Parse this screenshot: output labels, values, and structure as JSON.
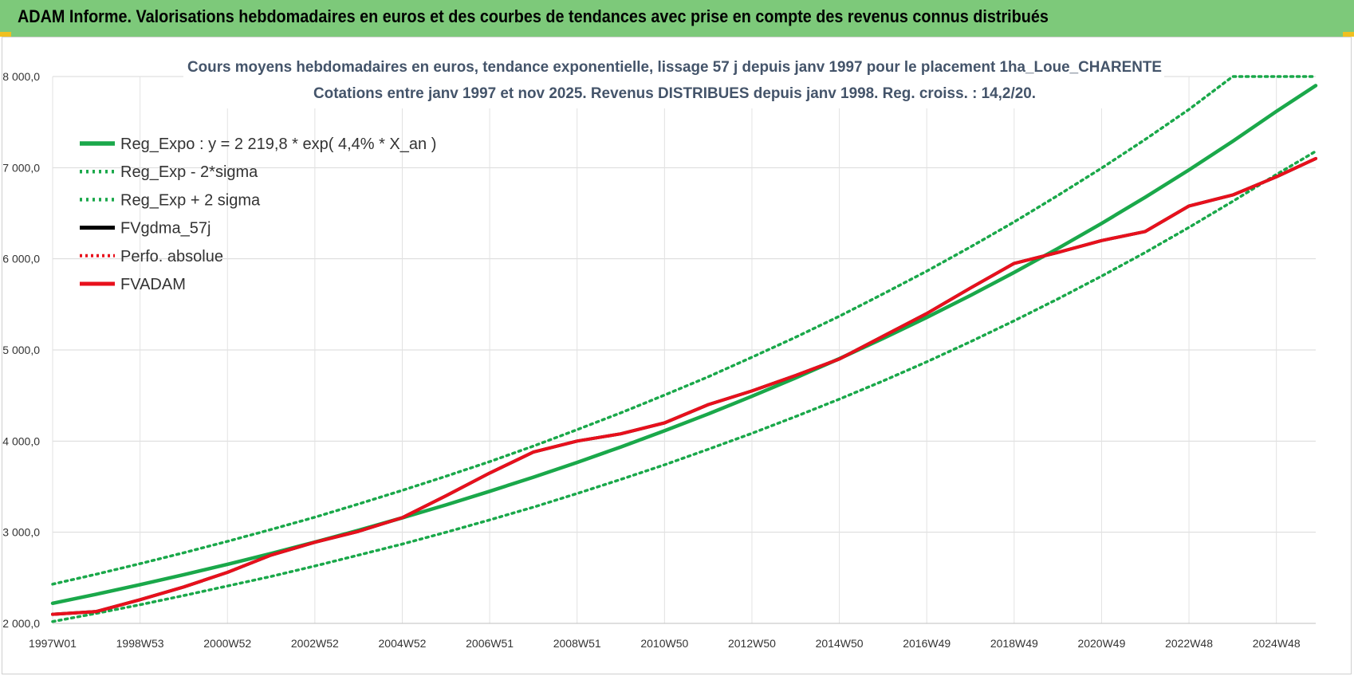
{
  "header": {
    "title": "ADAM Informe. Valorisations hebdomadaires en euros et des courbes de tendances avec prise en compte des revenus connus distribués"
  },
  "colors": {
    "banner": "#7dc97a",
    "trend": "#1aa84a",
    "fvgdma": "#000000",
    "fvadam": "#e8101c",
    "perfo": "#e8101c"
  },
  "chart_data": {
    "type": "line",
    "title": "Cours moyens hebdomadaires en euros, tendance exponentielle, lissage 57 j depuis janv 1997  pour le placement 1ha_Loue_CHARENTE",
    "subtitle": "Cotations entre janv 1997 et nov 2025. Revenus  DISTRIBUES depuis janv 1998.  Reg. croiss. : 14,2/20.",
    "xlabel": "",
    "ylabel": "",
    "x_range": [
      1997.0,
      2025.9
    ],
    "ylim": [
      2000,
      8000
    ],
    "grid": true,
    "legend_position": "top-left",
    "x_ticks": [
      {
        "label": "1997W01",
        "x": 1997.0
      },
      {
        "label": "1998W53",
        "x": 1999.0
      },
      {
        "label": "2000W52",
        "x": 2001.0
      },
      {
        "label": "2002W52",
        "x": 2003.0
      },
      {
        "label": "2004W52",
        "x": 2005.0
      },
      {
        "label": "2006W51",
        "x": 2007.0
      },
      {
        "label": "2008W51",
        "x": 2009.0
      },
      {
        "label": "2010W50",
        "x": 2011.0
      },
      {
        "label": "2012W50",
        "x": 2013.0
      },
      {
        "label": "2014W50",
        "x": 2015.0
      },
      {
        "label": "2016W49",
        "x": 2017.0
      },
      {
        "label": "2018W49",
        "x": 2019.0
      },
      {
        "label": "2020W49",
        "x": 2021.0
      },
      {
        "label": "2022W48",
        "x": 2023.0
      },
      {
        "label": "2024W48",
        "x": 2025.0
      }
    ],
    "y_ticks": [
      {
        "label": "2 000,0",
        "y": 2000
      },
      {
        "label": "3 000,0",
        "y": 3000
      },
      {
        "label": "4 000,0",
        "y": 4000
      },
      {
        "label": "5 000,0",
        "y": 5000
      },
      {
        "label": "6 000,0",
        "y": 6000
      },
      {
        "label": "7 000,0",
        "y": 7000
      },
      {
        "label": "8 000,0",
        "y": 8000
      }
    ],
    "x": [
      1997.0,
      1998.0,
      1999.0,
      2000.0,
      2001.0,
      2002.0,
      2003.0,
      2004.0,
      2005.0,
      2006.0,
      2007.0,
      2008.0,
      2009.0,
      2010.0,
      2011.0,
      2012.0,
      2013.0,
      2014.0,
      2015.0,
      2016.0,
      2017.0,
      2018.0,
      2019.0,
      2020.0,
      2021.0,
      2022.0,
      2023.0,
      2024.0,
      2025.0,
      2025.9
    ],
    "series": [
      {
        "name": "Reg_Expo : y = 2 219,8 * exp( 4,4% *  X_an )",
        "style": "solid-green",
        "values": [
          2220,
          2320,
          2425,
          2534,
          2648,
          2767,
          2892,
          3022,
          3158,
          3300,
          3449,
          3604,
          3766,
          3936,
          4113,
          4298,
          4492,
          4694,
          4905,
          5126,
          5357,
          5598,
          5850,
          6113,
          6388,
          6676,
          6976,
          7290,
          7618,
          7900
        ]
      },
      {
        "name": "Reg_Exp - 2*sigma",
        "style": "dotted-green",
        "values": [
          2020,
          2110,
          2205,
          2305,
          2410,
          2515,
          2630,
          2750,
          2870,
          3000,
          3135,
          3275,
          3425,
          3580,
          3740,
          3910,
          4085,
          4270,
          4460,
          4660,
          4870,
          5090,
          5320,
          5560,
          5810,
          6070,
          6345,
          6630,
          6925,
          7180
        ]
      },
      {
        "name": "Reg_Exp + 2 sigma",
        "style": "dotted-green",
        "values": [
          2430,
          2540,
          2655,
          2775,
          2900,
          3030,
          3165,
          3310,
          3460,
          3615,
          3775,
          3945,
          4125,
          4310,
          4505,
          4705,
          4920,
          5140,
          5370,
          5615,
          5865,
          6130,
          6405,
          6695,
          6995,
          7310,
          7640,
          8000,
          8000,
          8000
        ]
      },
      {
        "name": "FVgdma_57j",
        "style": "solid-black",
        "values": [
          2100,
          2130,
          2260,
          2400,
          2560,
          2750,
          2890,
          3010,
          3160,
          3400,
          3650,
          3880,
          4000,
          4080,
          4200,
          4400,
          4550,
          4720,
          4900,
          5150,
          5400,
          5680,
          5950,
          6070,
          6200,
          6300,
          6580,
          6700,
          6900,
          7100
        ]
      },
      {
        "name": "Perfo. absolue",
        "style": "dotted-red",
        "values": [
          2100,
          2130,
          2260,
          2400,
          2560,
          2750,
          2890,
          3010,
          3160,
          3400,
          3650,
          3880,
          4000,
          4080,
          4200,
          4400,
          4550,
          4720,
          4900,
          5150,
          5400,
          5680,
          5950,
          6070,
          6200,
          6300,
          6580,
          6700,
          6900,
          7100
        ]
      },
      {
        "name": "FVADAM",
        "style": "solid-red",
        "values": [
          2100,
          2130,
          2260,
          2400,
          2560,
          2750,
          2890,
          3010,
          3160,
          3400,
          3650,
          3880,
          4000,
          4080,
          4200,
          4400,
          4550,
          4720,
          4900,
          5150,
          5400,
          5680,
          5950,
          6070,
          6200,
          6300,
          6580,
          6700,
          6900,
          7100
        ]
      }
    ]
  }
}
